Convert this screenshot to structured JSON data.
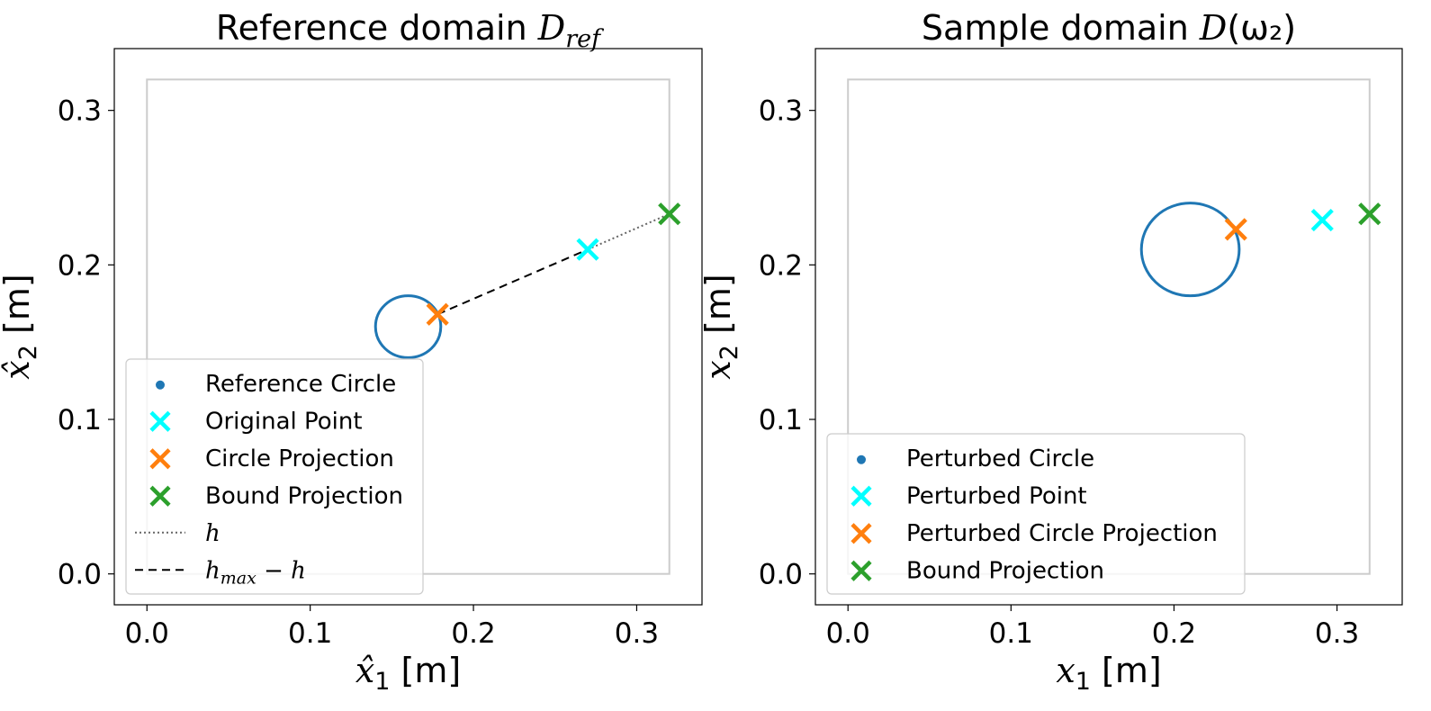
{
  "chart_data": [
    {
      "type": "scatter",
      "title": {
        "prefix": "Reference domain ",
        "math": "D",
        "sub": "ref",
        "suffix": ""
      },
      "xlabel": {
        "var": "x̂",
        "sub": "1",
        "unit": "[m]"
      },
      "ylabel": {
        "var": "x̂",
        "sub": "2",
        "unit": "[m]"
      },
      "xlim": [
        -0.02,
        0.34
      ],
      "ylim": [
        -0.02,
        0.34
      ],
      "xticks": [
        0.0,
        0.1,
        0.2,
        0.3
      ],
      "yticks": [
        0.0,
        0.1,
        0.2,
        0.3
      ],
      "xtick_labels": [
        "0.0",
        "0.1",
        "0.2",
        "0.3"
      ],
      "ytick_labels": [
        "0.0",
        "0.1",
        "0.2",
        "0.3"
      ],
      "grid": false,
      "legend_position": "lower-left",
      "bounding_box": {
        "x": [
          0.0,
          0.32
        ],
        "y": [
          0.0,
          0.32
        ]
      },
      "circle": {
        "name": "Reference Circle",
        "center": [
          0.16,
          0.16
        ],
        "radius": 0.02
      },
      "points": [
        {
          "name": "Original Point",
          "x": 0.27,
          "y": 0.21,
          "color": "#00ffff"
        },
        {
          "name": "Circle Projection",
          "x": 0.178,
          "y": 0.168,
          "color": "#ff7f0e"
        },
        {
          "name": "Bound Projection",
          "x": 0.32,
          "y": 0.233,
          "color": "#2ca02c"
        }
      ],
      "lines": [
        {
          "name": "h",
          "math": true,
          "style": "dotted",
          "from": [
            0.27,
            0.21
          ],
          "to": [
            0.32,
            0.233
          ]
        },
        {
          "name": "h_max − h",
          "math": true,
          "label_parts": {
            "base": "h",
            "sub": "max",
            "rest": " − h"
          },
          "style": "dashed",
          "from": [
            0.178,
            0.168
          ],
          "to": [
            0.27,
            0.21
          ]
        }
      ],
      "legend": [
        "Reference Circle",
        "Original Point",
        "Circle Projection",
        "Bound Projection",
        "h",
        "h_max − h"
      ]
    },
    {
      "type": "scatter",
      "title": {
        "prefix": "Sample domain ",
        "math": "D",
        "sub": "",
        "suffix": "(ω₂)"
      },
      "xlabel": {
        "var": "x",
        "sub": "1",
        "unit": "[m]"
      },
      "ylabel": {
        "var": "x",
        "sub": "2",
        "unit": "[m]"
      },
      "xlim": [
        -0.02,
        0.34
      ],
      "ylim": [
        -0.02,
        0.34
      ],
      "xticks": [
        0.0,
        0.1,
        0.2,
        0.3
      ],
      "yticks": [
        0.0,
        0.1,
        0.2,
        0.3
      ],
      "xtick_labels": [
        "0.0",
        "0.1",
        "0.2",
        "0.3"
      ],
      "ytick_labels": [
        "0.0",
        "0.1",
        "0.2",
        "0.3"
      ],
      "grid": false,
      "legend_position": "lower-left",
      "bounding_box": {
        "x": [
          0.0,
          0.32
        ],
        "y": [
          0.0,
          0.32
        ]
      },
      "circle": {
        "name": "Perturbed Circle",
        "center": [
          0.21,
          0.21
        ],
        "radius": 0.03
      },
      "points": [
        {
          "name": "Perturbed Point",
          "x": 0.291,
          "y": 0.229,
          "color": "#00ffff"
        },
        {
          "name": "Perturbed Circle Projection",
          "x": 0.238,
          "y": 0.223,
          "color": "#ff7f0e"
        },
        {
          "name": "Bound Projection",
          "x": 0.32,
          "y": 0.233,
          "color": "#2ca02c"
        }
      ],
      "lines": [],
      "legend": [
        "Perturbed Circle",
        "Perturbed Point",
        "Perturbed Circle Projection",
        "Bound Projection"
      ]
    }
  ],
  "colors": {
    "circle": "#1f77b4",
    "box": "#cccccc",
    "dotted": "#666666",
    "dashed": "#000000"
  }
}
